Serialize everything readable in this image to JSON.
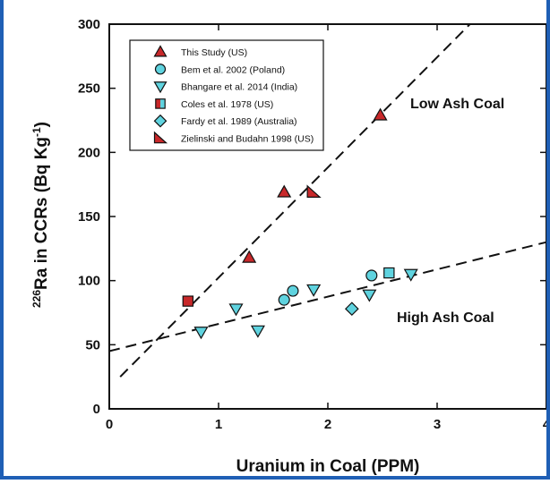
{
  "chart_data": {
    "type": "scatter",
    "xlabel": "Uranium in Coal (PPM)",
    "ylabel_main": "Ra in CCRs (Bq Kg",
    "ylabel_sup_mass": "226",
    "ylabel_sup_exp": "-1",
    "ylabel_close": ")",
    "xlim": [
      0,
      4
    ],
    "ylim": [
      0,
      300
    ],
    "xticks": [
      0,
      1,
      2,
      3,
      4
    ],
    "yticks": [
      0,
      50,
      100,
      150,
      200,
      250,
      300
    ],
    "xtick_labels": [
      "0",
      "1",
      "2",
      "3",
      "4"
    ],
    "ytick_labels": [
      "0",
      "50",
      "100",
      "150",
      "200",
      "250",
      "300"
    ],
    "legend_position": "top-left",
    "grid": false,
    "series": [
      {
        "name": "This Study (US)",
        "marker": "triangle-up",
        "fill": "#c8282a",
        "points": [
          [
            1.28,
            118
          ],
          [
            1.6,
            169
          ],
          [
            2.48,
            229
          ]
        ]
      },
      {
        "name": "Bem et al. 2002 (Poland)",
        "marker": "circle",
        "fill": "#5fd3df",
        "points": [
          [
            1.6,
            85
          ],
          [
            1.68,
            92
          ],
          [
            2.4,
            104
          ]
        ]
      },
      {
        "name": "Bhangare et al. 2014 (India)",
        "marker": "triangle-down",
        "fill": "#5fd3df",
        "points": [
          [
            0.84,
            60
          ],
          [
            1.16,
            78
          ],
          [
            1.36,
            61
          ],
          [
            1.87,
            93
          ],
          [
            2.38,
            89
          ],
          [
            2.76,
            105
          ]
        ]
      },
      {
        "name": "Coles et al. 1978 (US)",
        "marker": "square-half",
        "fill": "#c8282a",
        "fill2": "#5fd3df",
        "points": [
          [
            0.72,
            84
          ],
          [
            2.56,
            106
          ]
        ]
      },
      {
        "name": "Fardy et al. 1989 (Australia)",
        "marker": "diamond",
        "fill": "#5fd3df",
        "points": [
          [
            2.22,
            78
          ]
        ]
      },
      {
        "name": "Zielinski and Budahn 1998 (US)",
        "marker": "half-triangle",
        "fill": "#c8282a",
        "points": [
          [
            1.87,
            169
          ]
        ]
      }
    ],
    "trendlines": [
      {
        "label": "Low Ash Coal",
        "from": [
          0.1,
          25
        ],
        "to": [
          3.3,
          300
        ]
      },
      {
        "label": "High Ash Coal",
        "from": [
          0.0,
          45
        ],
        "to": [
          4.0,
          130
        ]
      }
    ],
    "annotations": [
      "Low Ash Coal",
      "High Ash Coal"
    ]
  }
}
